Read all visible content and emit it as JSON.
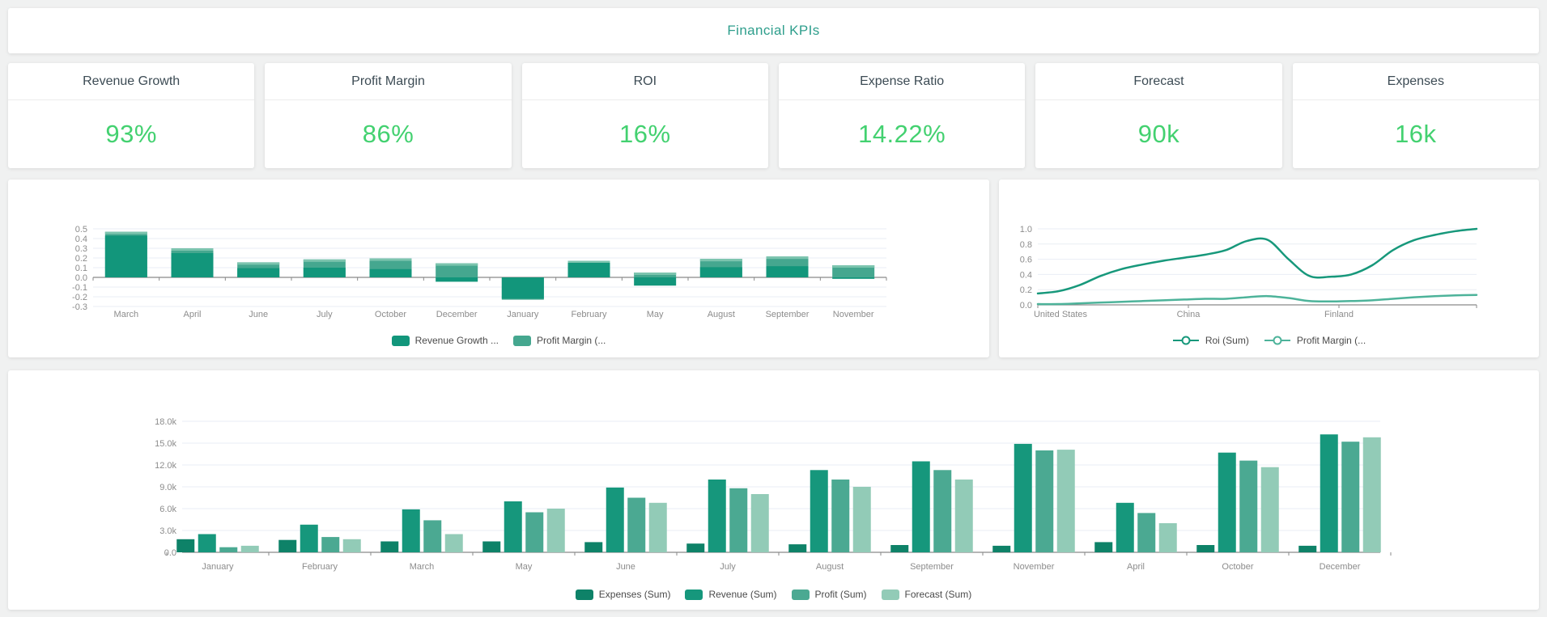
{
  "header": {
    "title": "Financial KPIs",
    "accent_color": "#2e9e8c"
  },
  "kpis": [
    {
      "label": "Revenue Growth",
      "value": "93%"
    },
    {
      "label": "Profit Margin",
      "value": "86%"
    },
    {
      "label": "ROI",
      "value": "16%"
    },
    {
      "label": "Expense Ratio",
      "value": "14.22%"
    },
    {
      "label": "Forecast",
      "value": "90k"
    },
    {
      "label": "Expenses",
      "value": "16k"
    }
  ],
  "kpi_colors": {
    "label": "#3c4b54",
    "value": "#43d170"
  },
  "chart_data": [
    {
      "id": "monthly-margin-bar",
      "type": "bar",
      "legend_marker": "rect",
      "categories": [
        "March",
        "April",
        "June",
        "July",
        "October",
        "December",
        "January",
        "February",
        "May",
        "August",
        "September",
        "November"
      ],
      "series": [
        {
          "name": "Profit Margin (...",
          "color": "#45a78f",
          "cap_color": "#7cc4ae",
          "values": [
            0.47,
            0.3,
            0.155,
            0.185,
            0.195,
            0.145,
            -0.23,
            0.17,
            0.05,
            0.19,
            0.215,
            0.125
          ]
        },
        {
          "name": "Revenue Growth ...",
          "color": "#12967b",
          "values": [
            0.43,
            0.25,
            0.095,
            0.1,
            0.085,
            -0.045,
            -0.22,
            0.15,
            -0.085,
            0.105,
            0.115,
            -0.015
          ]
        }
      ],
      "legend_order": [
        1,
        0
      ],
      "ylim": [
        -0.3,
        0.5
      ],
      "yticks": [
        0.5,
        0.4,
        0.3,
        0.2,
        0.1,
        0.0,
        -0.1,
        -0.2,
        -0.3
      ],
      "ytick_labels": [
        "0.5",
        "0.4",
        "0.3",
        "0.2",
        "0.1",
        "0.0",
        "-0.1",
        "-0.2",
        "-0.3"
      ],
      "grid": true,
      "legend_position": "bottom"
    },
    {
      "id": "country-roi-line",
      "type": "line",
      "legend_marker": "line-circle",
      "x_labels": [
        "United States",
        "China",
        "Finland"
      ],
      "series": [
        {
          "name": "Roi (Sum)",
          "color": "#17987b",
          "values": [
            0.15,
            0.18,
            0.26,
            0.38,
            0.47,
            0.53,
            0.58,
            0.62,
            0.66,
            0.72,
            0.84,
            0.855,
            0.6,
            0.38,
            0.37,
            0.4,
            0.52,
            0.72,
            0.85,
            0.92,
            0.97,
            1.0
          ]
        },
        {
          "name": "Profit Margin (...",
          "color": "#4db39a",
          "values": [
            0.01,
            0.01,
            0.02,
            0.03,
            0.04,
            0.05,
            0.06,
            0.07,
            0.08,
            0.08,
            0.1,
            0.115,
            0.09,
            0.05,
            0.045,
            0.05,
            0.06,
            0.08,
            0.1,
            0.115,
            0.125,
            0.13
          ]
        }
      ],
      "ylim": [
        0,
        1.0
      ],
      "yticks": [
        1.0,
        0.8,
        0.6,
        0.4,
        0.2,
        0.0
      ],
      "ytick_labels": [
        "1.0",
        "0.8",
        "0.6",
        "0.4",
        "0.2",
        "0.0"
      ],
      "grid": true,
      "legend_position": "bottom"
    },
    {
      "id": "monthly-financials-grouped-bar",
      "type": "grouped-bar",
      "legend_marker": "rect",
      "categories": [
        "January",
        "February",
        "March",
        "May",
        "June",
        "July",
        "August",
        "September",
        "November",
        "April",
        "October",
        "December"
      ],
      "series": [
        {
          "name": "Expenses (Sum)",
          "color": "#0e8268",
          "values": [
            1800,
            1700,
            1500,
            1500,
            1400,
            1200,
            1100,
            1000,
            900,
            1400,
            1000,
            900
          ]
        },
        {
          "name": "Revenue (Sum)",
          "color": "#16977c",
          "values": [
            2500,
            3800,
            5900,
            7000,
            8900,
            10000,
            11300,
            12500,
            14900,
            6800,
            13700,
            16200
          ]
        },
        {
          "name": "Profit (Sum)",
          "color": "#4ba992",
          "values": [
            700,
            2100,
            4400,
            5500,
            7500,
            8800,
            10000,
            11300,
            14000,
            5400,
            12600,
            15200
          ]
        },
        {
          "name": "Forecast (Sum)",
          "color": "#92cbb7",
          "values": [
            900,
            1800,
            2500,
            6000,
            6800,
            8000,
            9000,
            10000,
            14100,
            4000,
            11700,
            15800
          ]
        }
      ],
      "ylim": [
        0,
        18000
      ],
      "yticks": [
        18000,
        15000,
        12000,
        9000,
        6000,
        3000,
        0
      ],
      "ytick_labels": [
        "18.0k",
        "15.0k",
        "12.0k",
        "9.0k",
        "6.0k",
        "3.0k",
        "0.0"
      ],
      "grid": true,
      "legend_position": "bottom"
    }
  ],
  "style_colors": {
    "grid": "#e9edf4",
    "axis": "#8a8a8a",
    "tick_text": "#8c8c8c"
  }
}
